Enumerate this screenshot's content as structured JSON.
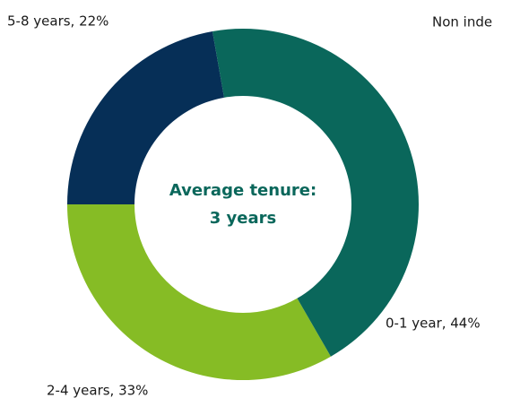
{
  "chart_data": {
    "type": "donut",
    "categories": [
      "0-1 year",
      "2-4 years",
      "5-8 years"
    ],
    "values": [
      44,
      33,
      22
    ],
    "value_labels": [
      "0-1 year, 44%",
      "2-4 years, 33%",
      "5-8 years, 22%"
    ],
    "colors": [
      "#0a675b",
      "#86bc25",
      "#062f57"
    ],
    "center_text": [
      "Average tenure:",
      "3 years"
    ],
    "annotation": "Non inde"
  }
}
